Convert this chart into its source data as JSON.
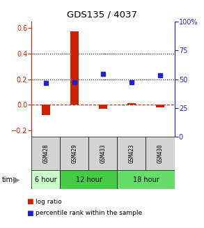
{
  "title": "GDS135 / 4037",
  "samples": [
    "GSM428",
    "GSM429",
    "GSM433",
    "GSM423",
    "GSM430"
  ],
  "log_ratio": [
    -0.08,
    0.575,
    -0.03,
    0.01,
    -0.02
  ],
  "percentile_rank": [
    47,
    47.5,
    54.5,
    47.5,
    53.5
  ],
  "time_groups": [
    {
      "label": "6 hour",
      "indices": [
        0
      ],
      "color": "#ccffcc"
    },
    {
      "label": "12 hour",
      "indices": [
        1,
        2
      ],
      "color": "#44cc44"
    },
    {
      "label": "18 hour",
      "indices": [
        3,
        4
      ],
      "color": "#66dd66"
    }
  ],
  "bar_color": "#cc2200",
  "dot_color": "#2222cc",
  "ylim_left": [
    -0.25,
    0.65
  ],
  "ylim_right": [
    0,
    100
  ],
  "yticks_left": [
    -0.2,
    0.0,
    0.2,
    0.4,
    0.6
  ],
  "yticks_right": [
    0,
    25,
    50,
    75,
    100
  ],
  "hlines": [
    0.2,
    0.4
  ],
  "sample_bg": "#d3d3d3",
  "plot_bg": "#ffffff"
}
